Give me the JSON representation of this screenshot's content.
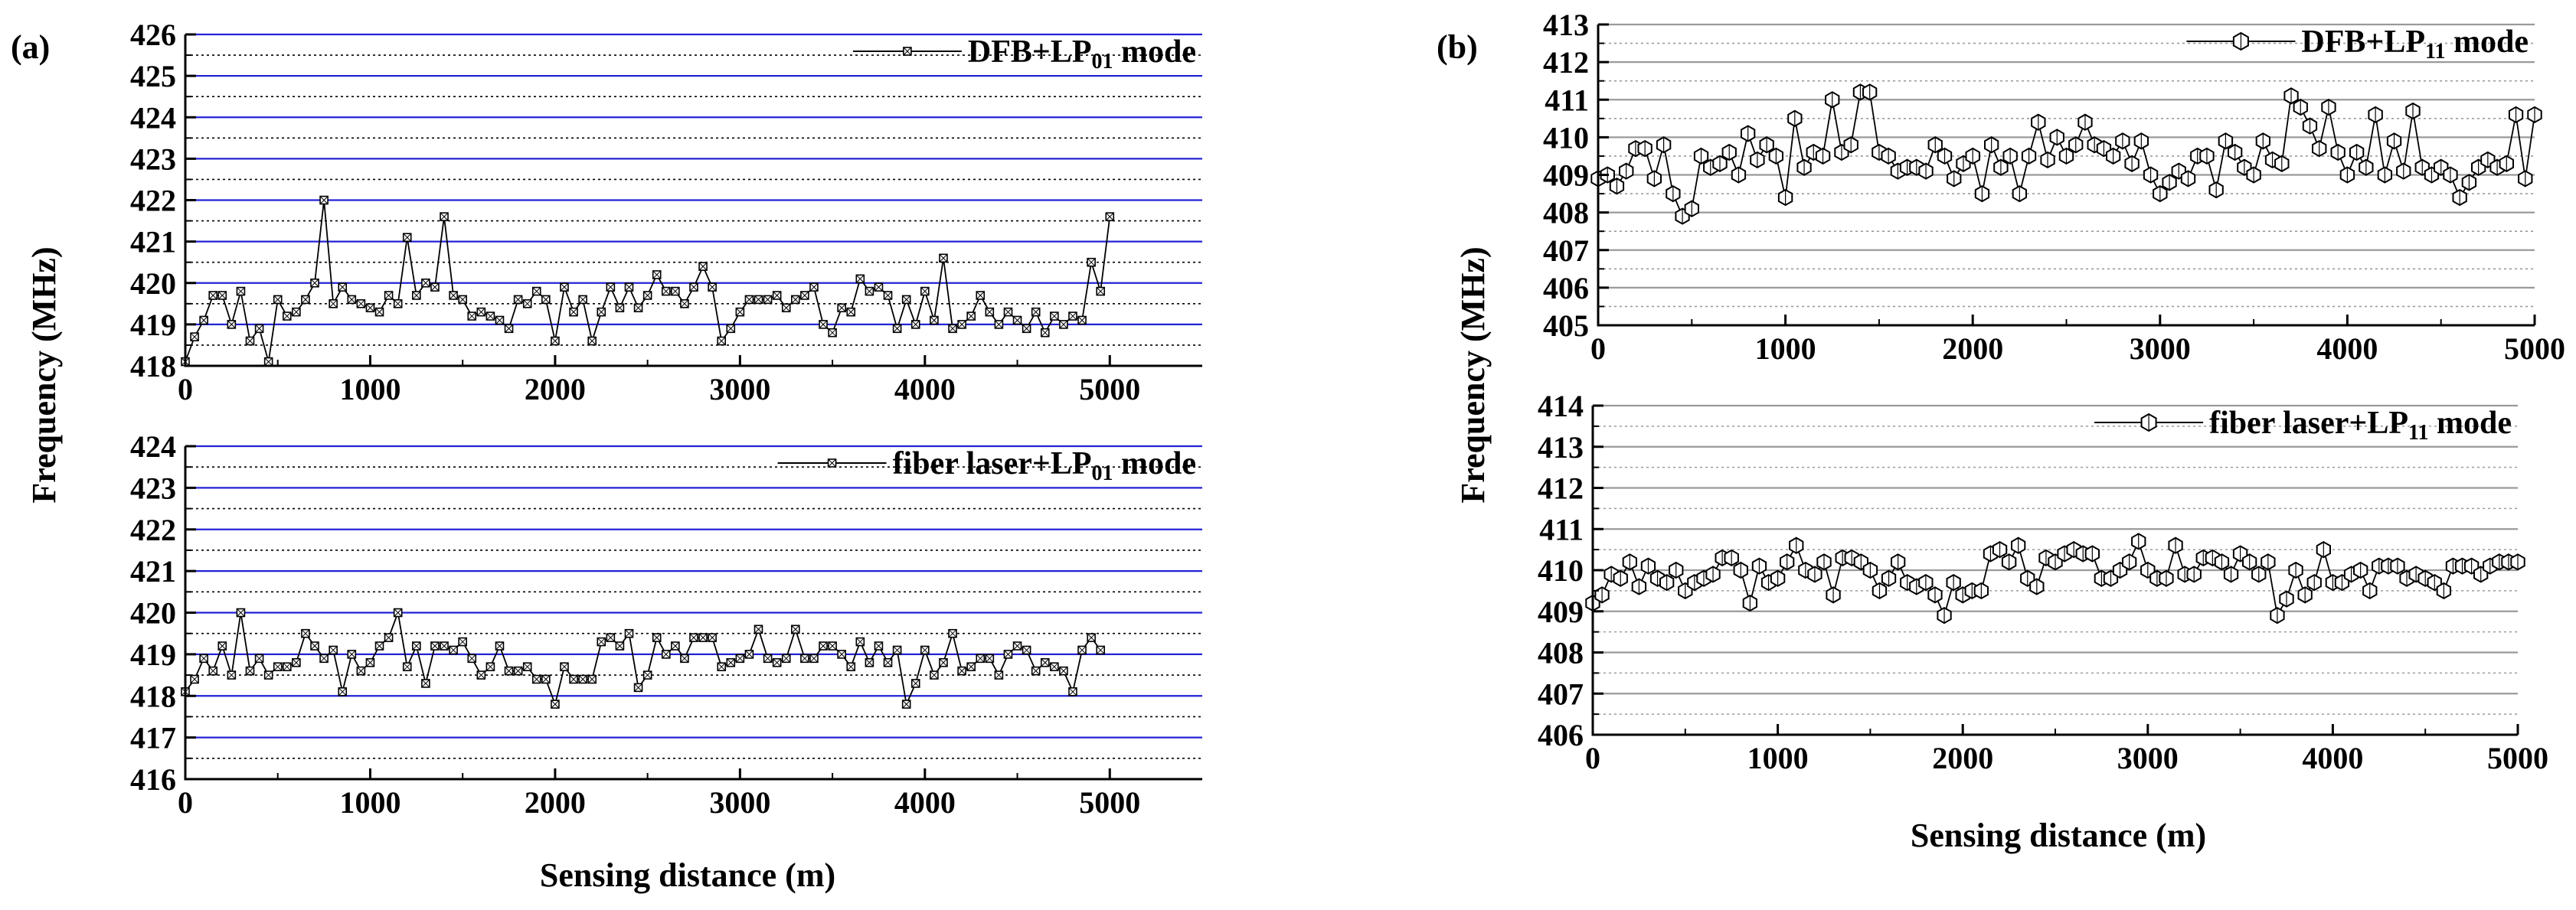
{
  "figure": {
    "panel_a_label": "(a)",
    "panel_b_label": "(b)",
    "ylabel": "Frequency (MHz)",
    "xlabel": "Sensing distance (m)"
  },
  "chart_data": [
    {
      "id": "a-top",
      "type": "line",
      "marker": "square-x",
      "title": "",
      "xlabel": "",
      "ylabel": "Frequency (MHz)",
      "xlim": [
        0,
        5500
      ],
      "ylim": [
        418,
        426
      ],
      "xticks": [
        0,
        1000,
        2000,
        3000,
        4000,
        5000
      ],
      "xtick_labels": [
        "0",
        "1000",
        "2000",
        "3000",
        "4000",
        "5000"
      ],
      "yticks": [
        418,
        419,
        420,
        421,
        422,
        423,
        424,
        425,
        426
      ],
      "ytick_labels": [
        "418",
        "419",
        "420",
        "421",
        "422",
        "423",
        "424",
        "425",
        "426"
      ],
      "grid": "blue solid at integers, black dotted at half-integers",
      "legend": {
        "text": "DFB+LP",
        "sub": "01",
        "suffix": " mode",
        "position": "top-right"
      },
      "x": [
        0,
        50,
        100,
        150,
        200,
        250,
        300,
        350,
        400,
        450,
        500,
        550,
        600,
        650,
        700,
        750,
        800,
        850,
        900,
        950,
        1000,
        1050,
        1100,
        1150,
        1200,
        1250,
        1300,
        1350,
        1400,
        1450,
        1500,
        1550,
        1600,
        1650,
        1700,
        1750,
        1800,
        1850,
        1900,
        1950,
        2000,
        2050,
        2100,
        2150,
        2200,
        2250,
        2300,
        2350,
        2400,
        2450,
        2500,
        2550,
        2600,
        2650,
        2700,
        2750,
        2800,
        2850,
        2900,
        2950,
        3000,
        3050,
        3100,
        3150,
        3200,
        3250,
        3300,
        3350,
        3400,
        3450,
        3500,
        3550,
        3600,
        3650,
        3700,
        3750,
        3800,
        3850,
        3900,
        3950,
        4000,
        4050,
        4100,
        4150,
        4200,
        4250,
        4300,
        4350,
        4400,
        4450,
        4500,
        4550,
        4600,
        4650,
        4700,
        4750,
        4800,
        4850,
        4900,
        4950,
        5000
      ],
      "y": [
        418.1,
        418.7,
        419.1,
        419.7,
        419.7,
        419.0,
        419.8,
        418.6,
        418.9,
        418.1,
        419.6,
        419.2,
        419.3,
        419.6,
        420.0,
        422.0,
        419.5,
        419.9,
        419.6,
        419.5,
        419.4,
        419.3,
        419.7,
        419.5,
        421.1,
        419.7,
        420.0,
        419.9,
        421.6,
        419.7,
        419.6,
        419.2,
        419.3,
        419.2,
        419.1,
        418.9,
        419.6,
        419.5,
        419.8,
        419.6,
        418.6,
        419.9,
        419.3,
        419.6,
        418.6,
        419.3,
        419.9,
        419.4,
        419.9,
        419.4,
        419.7,
        420.2,
        419.8,
        419.8,
        419.5,
        419.9,
        420.4,
        419.9,
        418.6,
        418.9,
        419.3,
        419.6,
        419.6,
        419.6,
        419.7,
        419.4,
        419.6,
        419.7,
        419.9,
        419.0,
        418.8,
        419.4,
        419.3,
        420.1,
        419.8,
        419.9,
        419.7,
        418.9,
        419.6,
        419.0,
        419.8,
        419.1,
        420.6,
        418.9,
        419.0,
        419.2,
        419.7,
        419.3,
        419.0,
        419.3,
        419.1,
        418.9,
        419.3,
        418.8,
        419.2,
        419.0,
        419.2,
        419.1,
        420.5,
        419.8,
        421.6
      ]
    },
    {
      "id": "a-bottom",
      "type": "line",
      "marker": "square-x",
      "title": "",
      "xlabel": "Sensing distance (m)",
      "ylabel": "Frequency (MHz)",
      "xlim": [
        0,
        5500
      ],
      "ylim": [
        416,
        424
      ],
      "xticks": [
        0,
        1000,
        2000,
        3000,
        4000,
        5000
      ],
      "xtick_labels": [
        "0",
        "1000",
        "2000",
        "3000",
        "4000",
        "5000"
      ],
      "yticks": [
        416,
        417,
        418,
        419,
        420,
        421,
        422,
        423,
        424
      ],
      "ytick_labels": [
        "416",
        "417",
        "418",
        "419",
        "420",
        "421",
        "422",
        "423",
        "424"
      ],
      "grid": "blue solid at integers, black dotted at half-integers",
      "legend": {
        "text": "fiber laser+LP",
        "sub": "01",
        "suffix": " mode",
        "position": "top-right"
      },
      "x": [
        0,
        50,
        100,
        150,
        200,
        250,
        300,
        350,
        400,
        450,
        500,
        550,
        600,
        650,
        700,
        750,
        800,
        850,
        900,
        950,
        1000,
        1050,
        1100,
        1150,
        1200,
        1250,
        1300,
        1350,
        1400,
        1450,
        1500,
        1550,
        1600,
        1650,
        1700,
        1750,
        1800,
        1850,
        1900,
        1950,
        2000,
        2050,
        2100,
        2150,
        2200,
        2250,
        2300,
        2350,
        2400,
        2450,
        2500,
        2550,
        2600,
        2650,
        2700,
        2750,
        2800,
        2850,
        2900,
        2950,
        3000,
        3050,
        3100,
        3150,
        3200,
        3250,
        3300,
        3350,
        3400,
        3450,
        3500,
        3550,
        3600,
        3650,
        3700,
        3750,
        3800,
        3850,
        3900,
        3950,
        4000,
        4050,
        4100,
        4150,
        4200,
        4250,
        4300,
        4350,
        4400,
        4450,
        4500,
        4550,
        4600,
        4650,
        4700,
        4750,
        4800,
        4850,
        4900,
        4950
      ],
      "y": [
        418.1,
        418.4,
        418.9,
        418.6,
        419.2,
        418.5,
        420.0,
        418.6,
        418.9,
        418.5,
        418.7,
        418.7,
        418.8,
        419.5,
        419.2,
        418.9,
        419.1,
        418.1,
        419.0,
        418.6,
        418.8,
        419.2,
        419.4,
        420.0,
        418.7,
        419.2,
        418.3,
        419.2,
        419.2,
        419.1,
        419.3,
        418.9,
        418.5,
        418.7,
        419.2,
        418.6,
        418.6,
        418.7,
        418.4,
        418.4,
        417.8,
        418.7,
        418.4,
        418.4,
        418.4,
        419.3,
        419.4,
        419.2,
        419.5,
        418.2,
        418.5,
        419.4,
        419.0,
        419.2,
        418.9,
        419.4,
        419.4,
        419.4,
        418.7,
        418.8,
        418.9,
        419.0,
        419.6,
        418.9,
        418.8,
        418.9,
        419.6,
        418.9,
        418.9,
        419.2,
        419.2,
        419.0,
        418.7,
        419.3,
        418.8,
        419.2,
        418.8,
        419.1,
        417.8,
        418.3,
        419.1,
        418.5,
        418.8,
        419.5,
        418.6,
        418.7,
        418.9,
        418.9,
        418.5,
        419.0,
        419.2,
        419.1,
        418.6,
        418.8,
        418.7,
        418.6,
        418.1,
        419.1,
        419.4,
        419.1
      ]
    },
    {
      "id": "b-top",
      "type": "line",
      "marker": "hexagon",
      "title": "",
      "xlabel": "",
      "ylabel": "Frequency (MHz)",
      "xlim": [
        0,
        5000
      ],
      "ylim": [
        405,
        413
      ],
      "xticks": [
        0,
        1000,
        2000,
        3000,
        4000,
        5000
      ],
      "xtick_labels": [
        "0",
        "1000",
        "2000",
        "3000",
        "4000",
        "5000"
      ],
      "yticks": [
        405,
        406,
        407,
        408,
        409,
        410,
        411,
        412,
        413
      ],
      "ytick_labels": [
        "405",
        "406",
        "407",
        "408",
        "409",
        "410",
        "411",
        "412",
        "413"
      ],
      "grid": "gray solid at integers, gray dotted at half-integers",
      "legend": {
        "text": "DFB+LP",
        "sub": "11",
        "suffix": " mode",
        "position": "top-right"
      },
      "x": [
        0,
        50,
        100,
        150,
        200,
        250,
        300,
        350,
        400,
        450,
        500,
        550,
        600,
        650,
        700,
        750,
        800,
        850,
        900,
        950,
        1000,
        1050,
        1100,
        1150,
        1200,
        1250,
        1300,
        1350,
        1400,
        1450,
        1500,
        1550,
        1600,
        1650,
        1700,
        1750,
        1800,
        1850,
        1900,
        1950,
        2000,
        2050,
        2100,
        2150,
        2200,
        2250,
        2300,
        2350,
        2400,
        2450,
        2500,
        2550,
        2600,
        2650,
        2700,
        2750,
        2800,
        2850,
        2900,
        2950,
        3000,
        3050,
        3100,
        3150,
        3200,
        3250,
        3300,
        3350,
        3400,
        3450,
        3500,
        3550,
        3600,
        3650,
        3700,
        3750,
        3800,
        3850,
        3900,
        3950,
        4000,
        4050,
        4100,
        4150,
        4200,
        4250,
        4300,
        4350,
        4400,
        4450,
        4500,
        4550,
        4600,
        4650,
        4700,
        4750,
        4800,
        4850,
        4900,
        4950,
        5000
      ],
      "y": [
        408.9,
        409.0,
        408.7,
        409.1,
        409.7,
        409.7,
        408.9,
        409.8,
        408.5,
        407.9,
        408.1,
        409.5,
        409.2,
        409.3,
        409.6,
        409.0,
        410.1,
        409.4,
        409.8,
        409.5,
        408.4,
        410.5,
        409.2,
        409.6,
        409.5,
        411.0,
        409.6,
        409.8,
        411.2,
        411.2,
        409.6,
        409.5,
        409.1,
        409.2,
        409.2,
        409.1,
        409.8,
        409.5,
        408.9,
        409.3,
        409.5,
        408.5,
        409.8,
        409.2,
        409.5,
        408.5,
        409.5,
        410.4,
        409.4,
        410.0,
        409.5,
        409.8,
        410.4,
        409.8,
        409.7,
        409.5,
        409.9,
        409.3,
        409.9,
        409.0,
        408.5,
        408.8,
        409.1,
        408.9,
        409.5,
        409.5,
        408.6,
        409.9,
        409.6,
        409.2,
        409.0,
        409.9,
        409.4,
        409.3,
        411.1,
        410.8,
        410.3,
        409.7,
        410.8,
        409.6,
        409.0,
        409.6,
        409.2,
        410.6,
        409.0,
        409.9,
        409.1,
        410.7,
        409.2,
        409.0,
        409.2,
        409.0,
        408.4,
        408.8,
        409.2,
        409.4,
        409.2,
        409.3,
        410.6,
        408.9,
        410.6
      ]
    },
    {
      "id": "b-bottom",
      "type": "line",
      "marker": "hexagon",
      "title": "",
      "xlabel": "Sensing distance (m)",
      "ylabel": "Frequency (MHz)",
      "xlim": [
        0,
        5000
      ],
      "ylim": [
        406,
        414
      ],
      "xticks": [
        0,
        1000,
        2000,
        3000,
        4000,
        5000
      ],
      "xtick_labels": [
        "0",
        "1000",
        "2000",
        "3000",
        "4000",
        "5000"
      ],
      "yticks": [
        406,
        407,
        408,
        409,
        410,
        411,
        412,
        413,
        414
      ],
      "ytick_labels": [
        "406",
        "407",
        "408",
        "409",
        "410",
        "411",
        "412",
        "413",
        "414"
      ],
      "grid": "gray solid at integers, gray dotted at half-integers",
      "legend": {
        "text": "fiber laser+LP",
        "sub": "11",
        "suffix": " mode",
        "position": "top-right"
      },
      "x": [
        0,
        50,
        100,
        150,
        200,
        250,
        300,
        350,
        400,
        450,
        500,
        550,
        600,
        650,
        700,
        750,
        800,
        850,
        900,
        950,
        1000,
        1050,
        1100,
        1150,
        1200,
        1250,
        1300,
        1350,
        1400,
        1450,
        1500,
        1550,
        1600,
        1650,
        1700,
        1750,
        1800,
        1850,
        1900,
        1950,
        2000,
        2050,
        2100,
        2150,
        2200,
        2250,
        2300,
        2350,
        2400,
        2450,
        2500,
        2550,
        2600,
        2650,
        2700,
        2750,
        2800,
        2850,
        2900,
        2950,
        3000,
        3050,
        3100,
        3150,
        3200,
        3250,
        3300,
        3350,
        3400,
        3450,
        3500,
        3550,
        3600,
        3650,
        3700,
        3750,
        3800,
        3850,
        3900,
        3950,
        4000,
        4050,
        4100,
        4150,
        4200,
        4250,
        4300,
        4350,
        4400,
        4450,
        4500,
        4550,
        4600,
        4650,
        4700,
        4750,
        4800,
        4850,
        4900,
        4950,
        5000
      ],
      "y": [
        409.2,
        409.4,
        409.9,
        409.8,
        410.2,
        409.6,
        410.1,
        409.8,
        409.7,
        410.0,
        409.5,
        409.7,
        409.8,
        409.9,
        410.3,
        410.3,
        410.0,
        409.2,
        410.1,
        409.7,
        409.8,
        410.2,
        410.6,
        410.0,
        409.9,
        410.2,
        409.4,
        410.3,
        410.3,
        410.2,
        410.0,
        409.5,
        409.8,
        410.2,
        409.7,
        409.6,
        409.7,
        409.4,
        408.9,
        409.7,
        409.4,
        409.5,
        409.5,
        410.4,
        410.5,
        410.2,
        410.6,
        409.8,
        409.6,
        410.3,
        410.2,
        410.4,
        410.5,
        410.4,
        410.4,
        409.8,
        409.8,
        410.0,
        410.2,
        410.7,
        410.0,
        409.8,
        409.8,
        410.6,
        409.9,
        409.9,
        410.3,
        410.3,
        410.2,
        409.9,
        410.4,
        410.2,
        409.9,
        410.2,
        408.9,
        409.3,
        410.0,
        409.4,
        409.7,
        410.5,
        409.7,
        409.7,
        409.9,
        410.0,
        409.5,
        410.1,
        410.1,
        410.1,
        409.8,
        409.9,
        409.8,
        409.7,
        409.5,
        410.1,
        410.1,
        410.1,
        409.9,
        410.1,
        410.2,
        410.2,
        410.2
      ]
    }
  ]
}
